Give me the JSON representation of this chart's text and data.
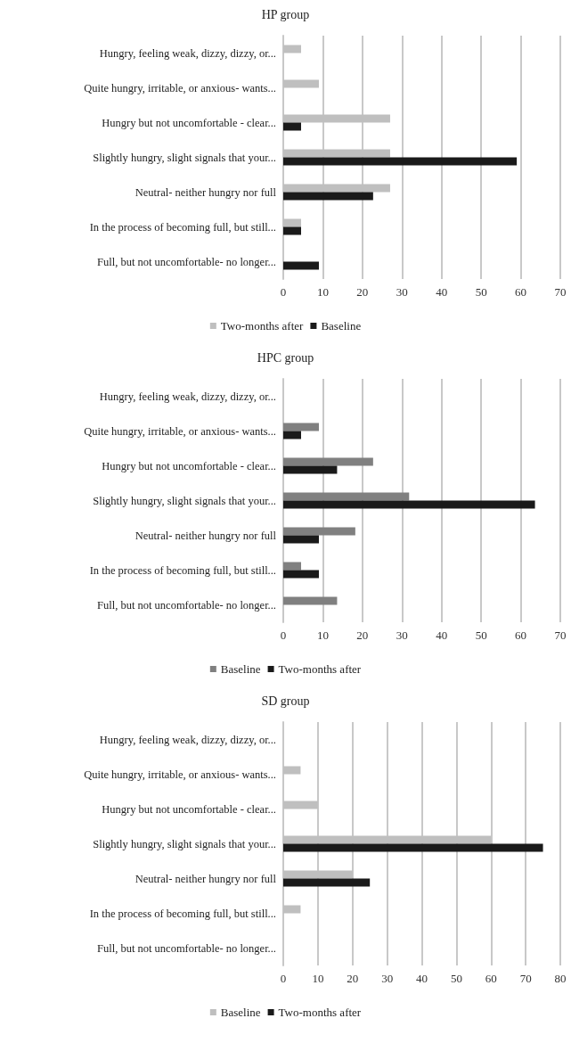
{
  "chart_data": [
    {
      "type": "bar",
      "orientation": "horizontal",
      "title": "HP group",
      "categories": [
        "Hungry, feeling weak, dizzy, dizzy, or...",
        "Quite hungry, irritable, or anxious- wants...",
        "Hungry but not uncomfortable - clear...",
        "Slightly hungry, slight signals that your...",
        "Neutral- neither hungry nor full",
        "In the process of becoming full, but still...",
        "Full, but not uncomfortable- no longer..."
      ],
      "series": [
        {
          "name": "Two-months after",
          "color": "#bfbfbf",
          "values": [
            4.5,
            9,
            27,
            27,
            27,
            4.5,
            0
          ]
        },
        {
          "name": "Baseline",
          "color": "#1a1a1a",
          "values": [
            0,
            0,
            4.5,
            59,
            22.7,
            4.5,
            9
          ]
        }
      ],
      "xlim": [
        0,
        70
      ],
      "xticks": [
        0,
        10,
        20,
        30,
        40,
        50,
        60,
        70
      ],
      "grid": "x",
      "legend": "bottom"
    },
    {
      "type": "bar",
      "orientation": "horizontal",
      "title": "HPC group",
      "categories": [
        "Hungry, feeling weak, dizzy, dizzy, or...",
        "Quite hungry, irritable, or anxious- wants...",
        "Hungry but not uncomfortable - clear...",
        "Slightly hungry, slight signals that your...",
        "Neutral- neither hungry nor full",
        "In the process of becoming full, but still...",
        "Full, but not uncomfortable- no longer..."
      ],
      "series": [
        {
          "name": "Baseline",
          "color": "#808080",
          "values": [
            0,
            9,
            22.7,
            31.8,
            18.2,
            4.5,
            13.6
          ]
        },
        {
          "name": "Two-months after",
          "color": "#1a1a1a",
          "values": [
            0,
            4.5,
            13.6,
            63.6,
            9,
            9,
            0
          ]
        }
      ],
      "xlim": [
        0,
        70
      ],
      "xticks": [
        0,
        10,
        20,
        30,
        40,
        50,
        60,
        70
      ],
      "grid": "x",
      "legend": "bottom"
    },
    {
      "type": "bar",
      "orientation": "horizontal",
      "title": "SD group",
      "categories": [
        "Hungry, feeling weak, dizzy, dizzy, or...",
        "Quite hungry, irritable, or anxious- wants...",
        "Hungry but not uncomfortable - clear...",
        "Slightly hungry, slight signals that your...",
        "Neutral- neither hungry nor full",
        "In the process of becoming full, but still...",
        "Full, but not uncomfortable- no longer..."
      ],
      "series": [
        {
          "name": "Baseline",
          "color": "#bfbfbf",
          "values": [
            0,
            5,
            10,
            60,
            20,
            5,
            0
          ]
        },
        {
          "name": "Two-months after",
          "color": "#1a1a1a",
          "values": [
            0,
            0,
            0,
            75,
            25,
            0,
            0
          ]
        }
      ],
      "xlim": [
        0,
        80
      ],
      "xticks": [
        0,
        10,
        20,
        30,
        40,
        50,
        60,
        70,
        80
      ],
      "grid": "x",
      "legend": "bottom"
    }
  ]
}
